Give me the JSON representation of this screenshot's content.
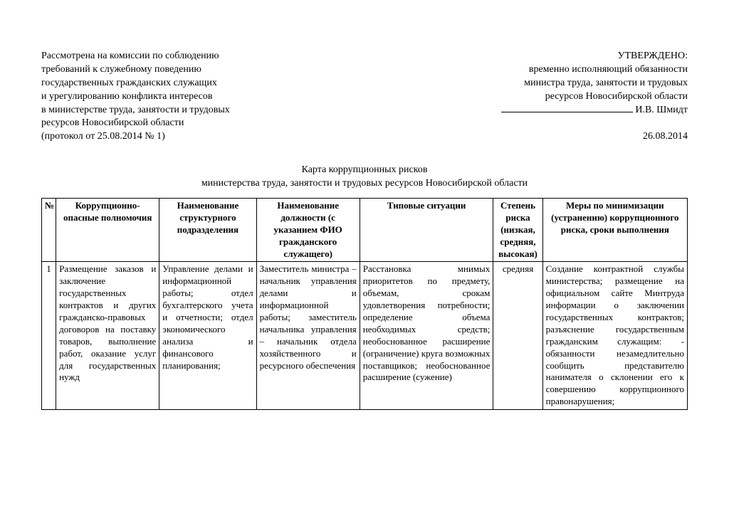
{
  "header": {
    "left_lines": [
      "Рассмотрена на комиссии по соблюдению",
      "требований к служебному поведению",
      "государственных гражданских служащих",
      "и урегулированию конфликта  интересов",
      "в министерстве труда, занятости и трудовых",
      "ресурсов Новосибирской области",
      "(протокол от 25.08.2014 № 1)"
    ],
    "right_lines": [
      "УТВЕРЖДЕНО:",
      "временно исполняющий обязанности",
      "министра труда, занятости и трудовых",
      "ресурсов Новосибирской области"
    ],
    "signatory": "И.В. Шмидт",
    "date": "26.08.2014"
  },
  "title": [
    "Карта коррупционных рисков",
    "министерства труда, занятости и трудовых ресурсов Новосибирской области"
  ],
  "table": {
    "columns": [
      "№",
      "Коррупционно-опасные полномочия",
      "Наименование структурного подразделения",
      "Наименование должности (с указанием ФИО гражданского служащего)",
      "Типовые ситуации",
      "Степень риска (низкая, средняя, высокая)",
      "Меры по минимизации (устранению) коррупционного риска, сроки выполнения"
    ],
    "row": {
      "n": "1",
      "c1": "Размещение заказов и заключение государственных контрактов и других гражданско-правовых договоров на поставку товаров, выполнение работ, оказание услуг для государственных нужд",
      "c2": "Управление делами и информационной работы; отдел бухгалтерского учета и отчетности; отдел экономического анализа и финансового планирования;",
      "c3": "Заместитель министра – начальник управления делами и информационной работы; заместитель начальника управления – начальник отдела хозяйственного и ресурсного обеспечения",
      "c4": "Расстановка мнимых приоритетов по предмету, объемам, срокам удовлетворения потребности; определение объема необходимых средств; необоснованное расширение (ограничение) круга возможных поставщиков; необоснованное расширение (сужение)",
      "c5": "средняя",
      "c6": "Создание контрактной службы министерства; размещение на официальном сайте Минтруда информации о заключении государственных контрактов; разъяснение государственным гражданским служащим: - обязанности незамедлительно сообщить представителю нанимателя о склонении его к совершению коррупционного правонарушения;"
    }
  }
}
